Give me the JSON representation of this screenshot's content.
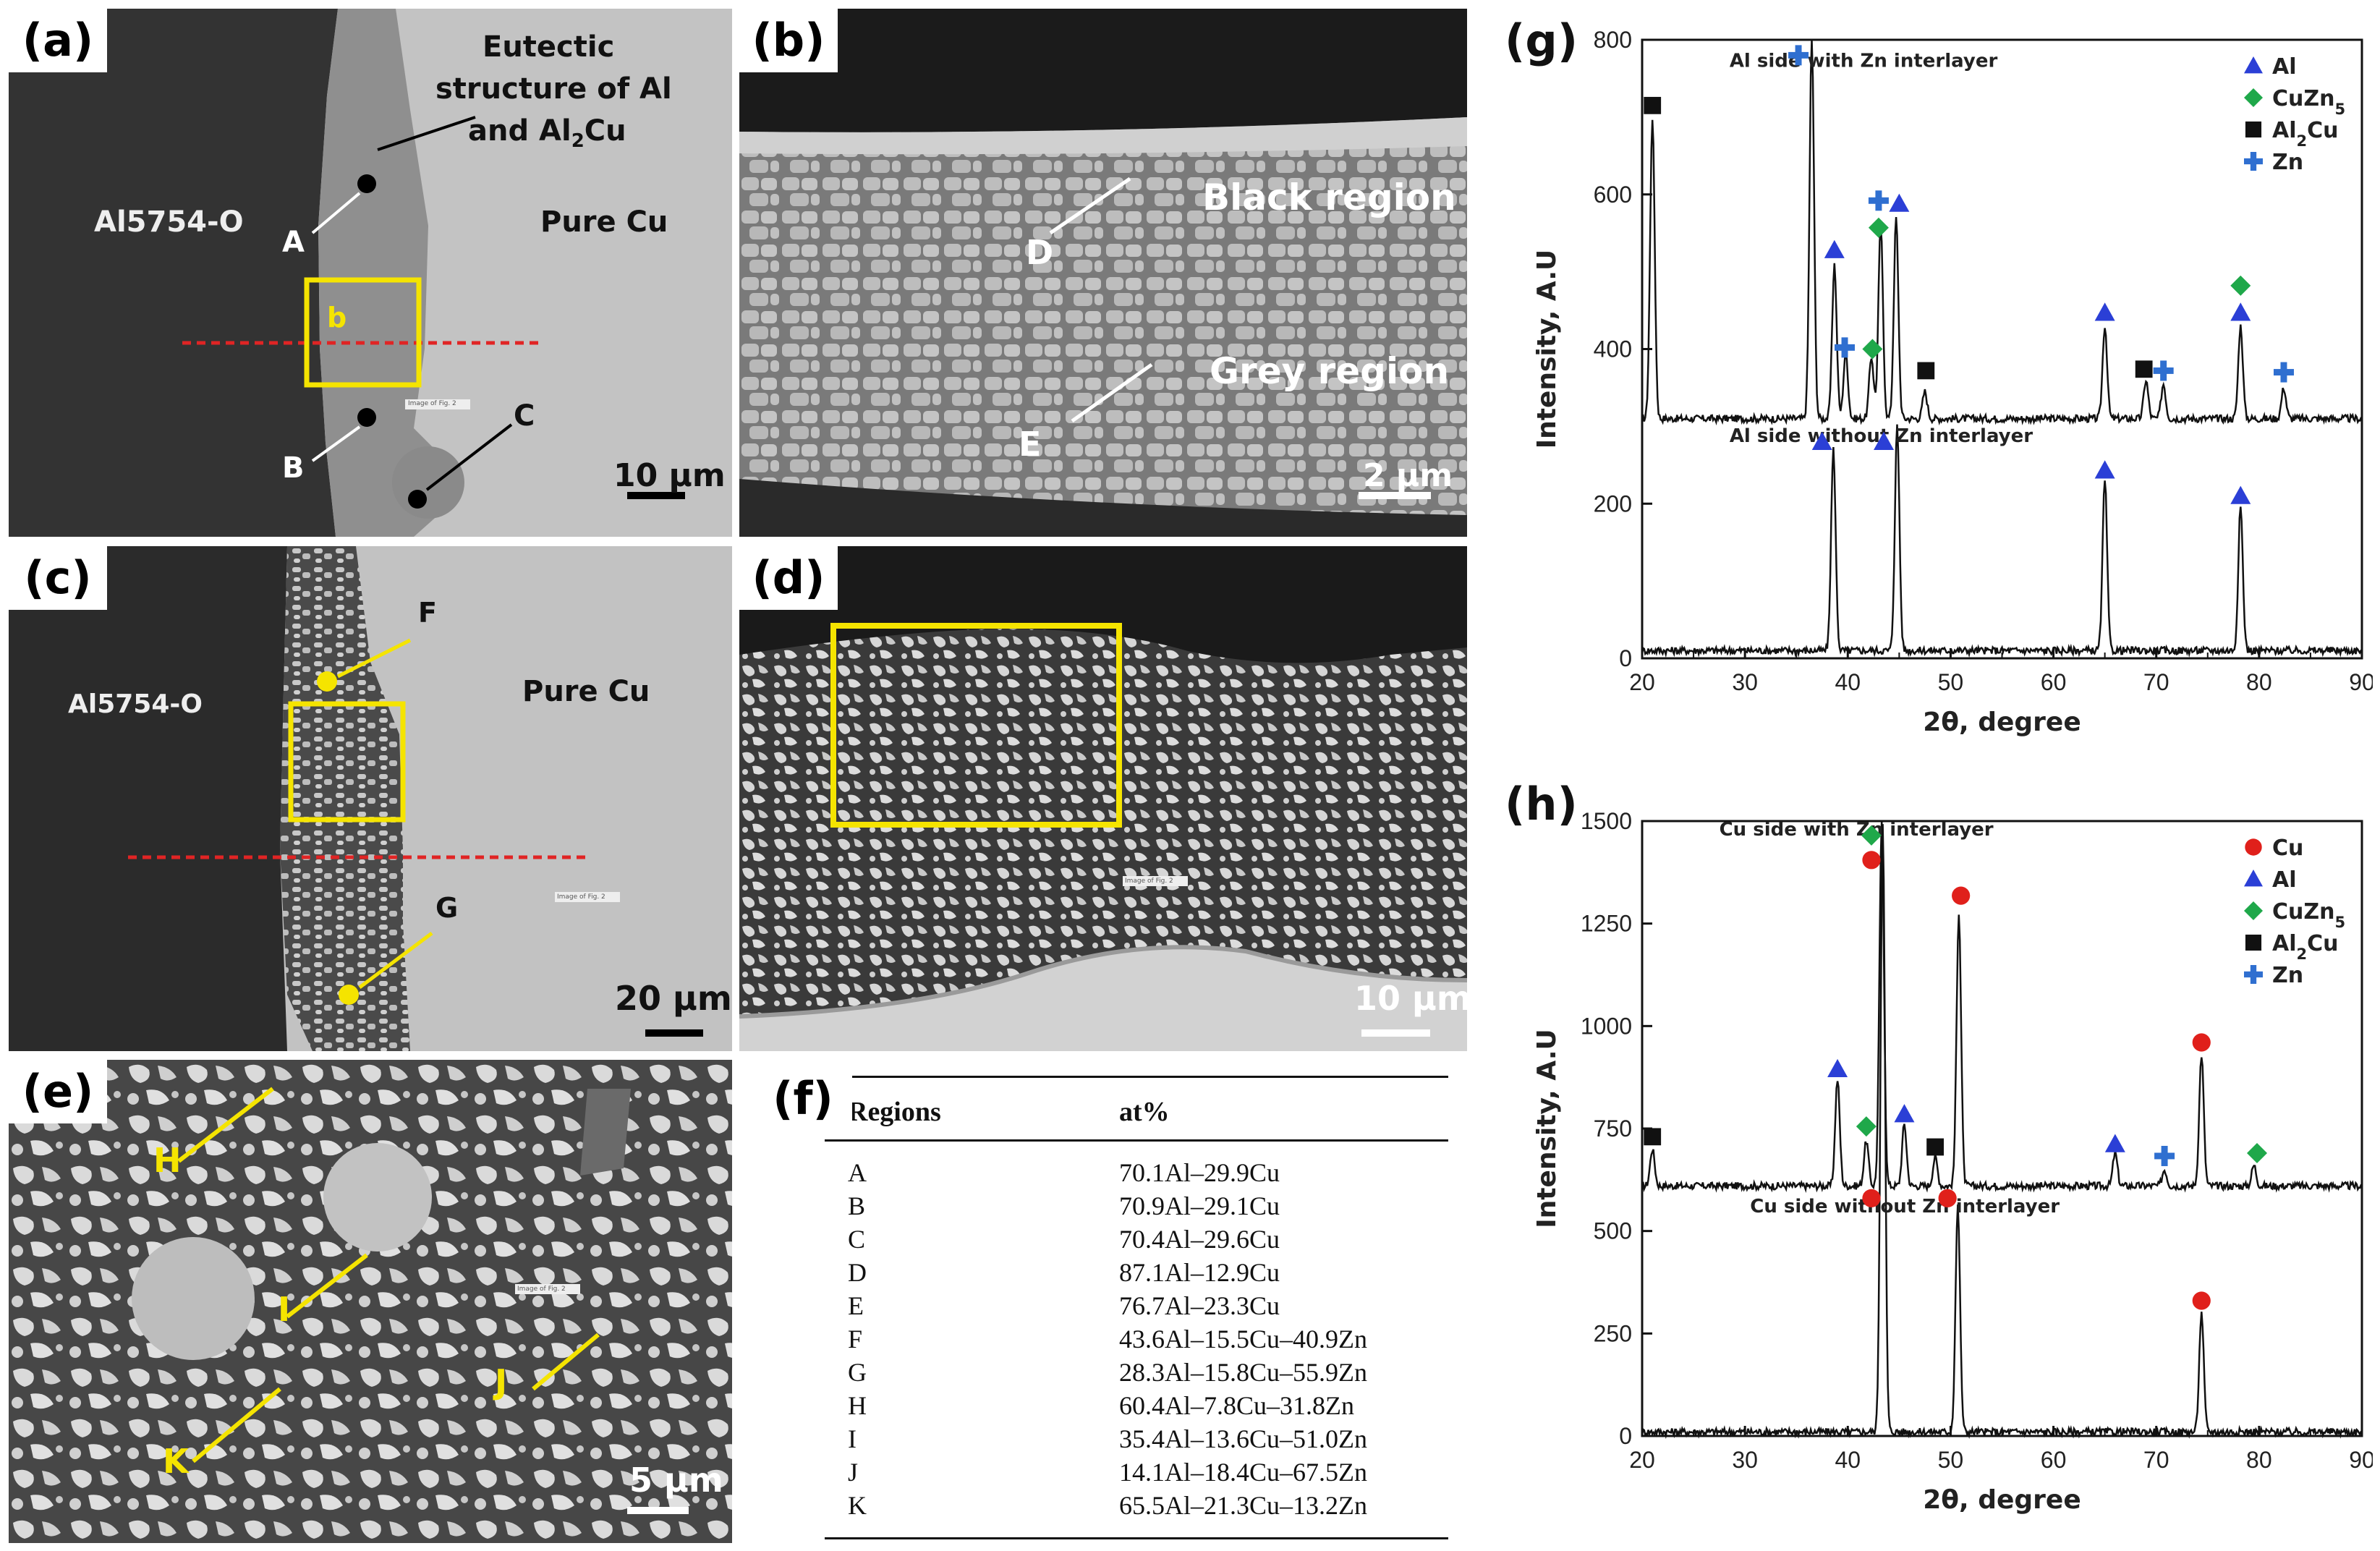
{
  "panels": {
    "a": {
      "label": "(a)",
      "al": "Al5754-O",
      "cu": "Pure Cu",
      "eutectic": [
        "Eutectic",
        "structure of Al",
        "and Al2Cu"
      ],
      "boxlabel": "b",
      "points": [
        "A",
        "B",
        "C"
      ],
      "scale": "10 μm",
      "stamp": "Image of Fig. 2"
    },
    "b": {
      "label": "(b)",
      "black_region": "Black region",
      "grey_region": "Grey region",
      "points": [
        "D",
        "E"
      ],
      "scale": "2 μm"
    },
    "c": {
      "label": "(c)",
      "al": "Al5754-O",
      "cu": "Pure Cu",
      "points": [
        "F",
        "G"
      ],
      "scale": "20 μm",
      "stamp": "Image of Fig. 2"
    },
    "d": {
      "label": "(d)",
      "scale": "10 μm",
      "stamp": "Image of Fig. 2"
    },
    "e": {
      "label": "(e)",
      "points": [
        "H",
        "I",
        "J",
        "K"
      ],
      "scale": "5 μm",
      "stamp": "Image of Fig. 2"
    },
    "f": {
      "label": "(f)",
      "headers": [
        "Regions",
        "at%"
      ],
      "rows": [
        [
          "A",
          "70.1Al–29.9Cu"
        ],
        [
          "B",
          "70.9Al–29.1Cu"
        ],
        [
          "C",
          "70.4Al–29.6Cu"
        ],
        [
          "D",
          "87.1Al–12.9Cu"
        ],
        [
          "E",
          "76.7Al–23.3Cu"
        ],
        [
          "F",
          "43.6Al–15.5Cu–40.9Zn"
        ],
        [
          "G",
          "28.3Al–15.8Cu–55.9Zn"
        ],
        [
          "H",
          "60.4Al–7.8Cu–31.8Zn"
        ],
        [
          "I",
          "35.4Al–13.6Cu–51.0Zn"
        ],
        [
          "J",
          "14.1Al–18.4Cu–67.5Zn"
        ],
        [
          "K",
          "65.5Al–21.3Cu–13.2Zn"
        ]
      ]
    }
  },
  "chart_data": [
    {
      "type": "line",
      "panel": "(g)",
      "xlabel": "2θ, degree",
      "ylabel": "Intensity, A.U",
      "xlim": [
        20,
        90
      ],
      "ylim": [
        0,
        800
      ],
      "xticks": [
        20,
        30,
        40,
        50,
        60,
        70,
        80,
        90
      ],
      "yticks": [
        0,
        200,
        400,
        600,
        800
      ],
      "legend": [
        {
          "name": "Al",
          "marker": "triangle",
          "color": "#2b3fd6"
        },
        {
          "name": "CuZn5",
          "marker": "diamond",
          "color": "#1fa84a"
        },
        {
          "name": "Al2Cu",
          "marker": "square",
          "color": "#111111"
        },
        {
          "name": "Zn",
          "marker": "cross",
          "color": "#2f6fd0"
        }
      ],
      "legend_position": "top-right",
      "series": [
        {
          "label": "Al side with Zn interlayer",
          "baseline": 310,
          "peaks": [
            [
              21.0,
              700
            ],
            [
              36.5,
              800
            ],
            [
              38.7,
              510
            ],
            [
              39.8,
              395
            ],
            [
              42.3,
              390
            ],
            [
              43.2,
              560
            ],
            [
              44.7,
              570
            ],
            [
              47.5,
              345
            ],
            [
              65.0,
              430
            ],
            [
              69.0,
              360
            ],
            [
              70.7,
              355
            ],
            [
              78.2,
              430
            ],
            [
              82.4,
              350
            ]
          ]
        },
        {
          "label": "Al side without Zn interlayer",
          "baseline": 10,
          "peaks": [
            [
              38.6,
              270
            ],
            [
              44.8,
              300
            ],
            [
              65.0,
              230
            ],
            [
              78.2,
              195
            ]
          ]
        }
      ],
      "markers": [
        {
          "x": 21.0,
          "y": 715,
          "type": "square"
        },
        {
          "x": 35.2,
          "y": 780,
          "type": "cross"
        },
        {
          "x": 38.7,
          "y": 528,
          "type": "triangle"
        },
        {
          "x": 43.0,
          "y": 592,
          "type": "cross"
        },
        {
          "x": 43.0,
          "y": 557,
          "type": "diamond"
        },
        {
          "x": 45.0,
          "y": 588,
          "type": "triangle"
        },
        {
          "x": 39.7,
          "y": 402,
          "type": "cross"
        },
        {
          "x": 42.4,
          "y": 400,
          "type": "diamond"
        },
        {
          "x": 47.6,
          "y": 372,
          "type": "square"
        },
        {
          "x": 65.0,
          "y": 447,
          "type": "triangle"
        },
        {
          "x": 68.8,
          "y": 374,
          "type": "square"
        },
        {
          "x": 70.7,
          "y": 372,
          "type": "cross"
        },
        {
          "x": 78.2,
          "y": 482,
          "type": "diamond"
        },
        {
          "x": 78.2,
          "y": 447,
          "type": "triangle"
        },
        {
          "x": 82.4,
          "y": 370,
          "type": "cross"
        },
        {
          "x": 37.5,
          "y": 280,
          "type": "triangle"
        },
        {
          "x": 43.5,
          "y": 280,
          "type": "triangle"
        },
        {
          "x": 65.0,
          "y": 243,
          "type": "triangle"
        },
        {
          "x": 78.2,
          "y": 210,
          "type": "triangle"
        }
      ]
    },
    {
      "type": "line",
      "panel": "(h)",
      "xlabel": "2θ, degree",
      "ylabel": "Intensity, A.U",
      "xlim": [
        20,
        90
      ],
      "ylim": [
        0,
        1500
      ],
      "xticks": [
        20,
        30,
        40,
        50,
        60,
        70,
        80,
        90
      ],
      "yticks": [
        0,
        250,
        500,
        750,
        1000,
        1250,
        1500
      ],
      "legend": [
        {
          "name": "Cu",
          "marker": "circle",
          "color": "#e0201b"
        },
        {
          "name": "Al",
          "marker": "triangle",
          "color": "#2b3fd6"
        },
        {
          "name": "CuZn5",
          "marker": "diamond",
          "color": "#1fa84a"
        },
        {
          "name": "Al2Cu",
          "marker": "square",
          "color": "#111111"
        },
        {
          "name": "Zn",
          "marker": "cross",
          "color": "#2f6fd0"
        }
      ],
      "legend_position": "top-right",
      "series": [
        {
          "label": "Cu side with Zn interlayer",
          "baseline": 610,
          "peaks": [
            [
              21.0,
              700
            ],
            [
              39.0,
              870
            ],
            [
              41.8,
              720
            ],
            [
              43.3,
              1500
            ],
            [
              45.5,
              760
            ],
            [
              48.5,
              680
            ],
            [
              50.8,
              1280
            ],
            [
              66.0,
              690
            ],
            [
              70.8,
              650
            ],
            [
              74.4,
              930
            ],
            [
              79.5,
              660
            ]
          ]
        },
        {
          "label": "Cu side without Zn interlayer",
          "baseline": 10,
          "peaks": [
            [
              43.4,
              1500
            ],
            [
              50.7,
              560
            ],
            [
              74.4,
              300
            ]
          ]
        }
      ],
      "markers": [
        {
          "x": 21.0,
          "y": 730,
          "type": "square"
        },
        {
          "x": 39.0,
          "y": 895,
          "type": "triangle"
        },
        {
          "x": 41.8,
          "y": 755,
          "type": "diamond"
        },
        {
          "x": 42.3,
          "y": 1465,
          "type": "diamond"
        },
        {
          "x": 42.3,
          "y": 1405,
          "type": "circle"
        },
        {
          "x": 45.5,
          "y": 785,
          "type": "triangle"
        },
        {
          "x": 48.5,
          "y": 705,
          "type": "square"
        },
        {
          "x": 51.0,
          "y": 1318,
          "type": "circle"
        },
        {
          "x": 66.0,
          "y": 712,
          "type": "triangle"
        },
        {
          "x": 70.8,
          "y": 683,
          "type": "cross"
        },
        {
          "x": 74.4,
          "y": 960,
          "type": "circle"
        },
        {
          "x": 79.8,
          "y": 690,
          "type": "diamond"
        },
        {
          "x": 42.3,
          "y": 580,
          "type": "circle"
        },
        {
          "x": 49.7,
          "y": 580,
          "type": "circle"
        },
        {
          "x": 74.4,
          "y": 330,
          "type": "circle"
        }
      ]
    }
  ]
}
